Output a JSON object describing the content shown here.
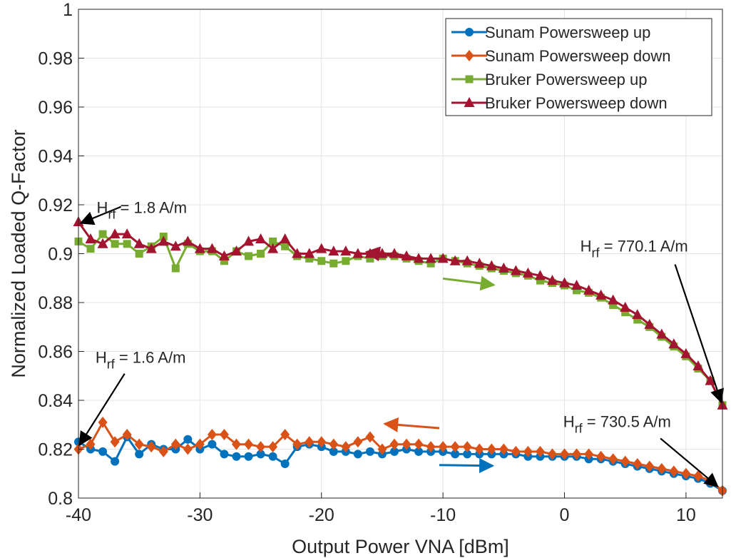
{
  "chart_data": {
    "type": "line",
    "xlabel": "Output Power VNA [dBm]",
    "ylabel": "Normalized Loaded Q-Factor",
    "xlim": [
      -40,
      13
    ],
    "ylim": [
      0.8,
      1.0
    ],
    "xticks": [
      "-40",
      "-30",
      "-20",
      "-10",
      "0",
      "10"
    ],
    "yticks": [
      "0.8",
      "0.82",
      "0.84",
      "0.86",
      "0.88",
      "0.9",
      "0.92",
      "0.94",
      "0.96",
      "0.98",
      "1"
    ],
    "grid": true,
    "legend_position": "top-right",
    "x": [
      -40,
      -39,
      -38,
      -37,
      -36,
      -35,
      -34,
      -33,
      -32,
      -31,
      -30,
      -29,
      -28,
      -27,
      -26,
      -25,
      -24,
      -23,
      -22,
      -21,
      -20,
      -19,
      -18,
      -17,
      -16,
      -15,
      -14,
      -13,
      -12,
      -11,
      -10,
      -9,
      -8,
      -7,
      -6,
      -5,
      -4,
      -3,
      -2,
      -1,
      0,
      1,
      2,
      3,
      4,
      5,
      6,
      7,
      8,
      9,
      10,
      11,
      12,
      13
    ],
    "series": [
      {
        "name": "Sunam Powersweep up",
        "color": "#0072BD",
        "marker": "circle",
        "values": [
          0.823,
          0.82,
          0.819,
          0.815,
          0.825,
          0.818,
          0.822,
          0.82,
          0.82,
          0.824,
          0.82,
          0.822,
          0.818,
          0.817,
          0.817,
          0.818,
          0.817,
          0.814,
          0.821,
          0.822,
          0.821,
          0.819,
          0.819,
          0.818,
          0.819,
          0.818,
          0.819,
          0.82,
          0.819,
          0.819,
          0.819,
          0.818,
          0.818,
          0.818,
          0.818,
          0.818,
          0.818,
          0.817,
          0.817,
          0.817,
          0.817,
          0.817,
          0.816,
          0.816,
          0.815,
          0.814,
          0.813,
          0.812,
          0.811,
          0.81,
          0.809,
          0.808,
          0.806,
          0.803
        ]
      },
      {
        "name": "Sunam Powersweep down",
        "color": "#D95319",
        "marker": "diamond",
        "values": [
          0.82,
          0.822,
          0.831,
          0.823,
          0.826,
          0.822,
          0.821,
          0.819,
          0.822,
          0.82,
          0.822,
          0.826,
          0.826,
          0.822,
          0.822,
          0.821,
          0.821,
          0.826,
          0.822,
          0.823,
          0.823,
          0.822,
          0.821,
          0.823,
          0.825,
          0.82,
          0.822,
          0.822,
          0.822,
          0.821,
          0.821,
          0.821,
          0.821,
          0.82,
          0.82,
          0.82,
          0.819,
          0.819,
          0.819,
          0.818,
          0.818,
          0.818,
          0.818,
          0.817,
          0.816,
          0.815,
          0.814,
          0.813,
          0.812,
          0.811,
          0.81,
          0.809,
          0.807,
          0.803
        ]
      },
      {
        "name": "Bruker Powersweep up",
        "color": "#77AC30",
        "marker": "square",
        "values": [
          0.905,
          0.902,
          0.908,
          0.904,
          0.904,
          0.9,
          0.903,
          0.907,
          0.894,
          0.904,
          0.901,
          0.901,
          0.897,
          0.901,
          0.899,
          0.9,
          0.905,
          0.903,
          0.899,
          0.898,
          0.897,
          0.896,
          0.897,
          0.899,
          0.898,
          0.899,
          0.899,
          0.898,
          0.897,
          0.896,
          0.898,
          0.897,
          0.896,
          0.895,
          0.894,
          0.893,
          0.892,
          0.891,
          0.889,
          0.888,
          0.887,
          0.885,
          0.884,
          0.882,
          0.879,
          0.876,
          0.873,
          0.87,
          0.866,
          0.862,
          0.858,
          0.853,
          0.848,
          0.838
        ]
      },
      {
        "name": "Bruker Powersweep down",
        "color": "#A2142F",
        "marker": "triangle",
        "values": [
          0.913,
          0.906,
          0.904,
          0.908,
          0.908,
          0.904,
          0.902,
          0.905,
          0.903,
          0.905,
          0.902,
          0.902,
          0.899,
          0.901,
          0.905,
          0.906,
          0.902,
          0.906,
          0.9,
          0.9,
          0.902,
          0.901,
          0.901,
          0.9,
          0.9,
          0.9,
          0.9,
          0.899,
          0.898,
          0.898,
          0.898,
          0.897,
          0.897,
          0.896,
          0.895,
          0.894,
          0.893,
          0.892,
          0.891,
          0.889,
          0.888,
          0.887,
          0.885,
          0.883,
          0.881,
          0.878,
          0.875,
          0.871,
          0.867,
          0.863,
          0.859,
          0.854,
          0.848,
          0.838
        ]
      }
    ],
    "annotations": [
      {
        "label": "H",
        "sub": "rf",
        "rest": " = 1.8 A/m",
        "x": -38.5,
        "y": 0.9166,
        "tx": -39.8,
        "ty": 0.9125,
        "ax": -36.5,
        "ay": 0.9192
      },
      {
        "label": "H",
        "sub": "rf",
        "rest": " = 770.1 A/m",
        "x": 1.3,
        "y": 0.9009,
        "tx": 12.9,
        "ty": 0.8393,
        "ax": 9.1,
        "ay": 0.8956
      },
      {
        "label": "H",
        "sub": "rf",
        "rest": " = 1.6 A/m",
        "x": -38.6,
        "y": 0.8554,
        "tx": -39.9,
        "ty": 0.8218,
        "ax": -36.2,
        "ay": 0.8509
      },
      {
        "label": "H",
        "sub": "rf",
        "rest": " = 730.5 A/m",
        "x": -0.1,
        "y": 0.8291,
        "tx": 12.6,
        "ty": 0.8048,
        "ax": 7.9,
        "ay": 0.8244
      }
    ],
    "direction_arrows": [
      {
        "color": "#A2142F",
        "from": [
          -12,
          0.8976
        ],
        "to": [
          -16.3,
          0.9007
        ]
      },
      {
        "color": "#77AC30",
        "from": [
          -10,
          0.8898
        ],
        "to": [
          -5.8,
          0.8872
        ]
      },
      {
        "color": "#D95319",
        "from": [
          -10.3,
          0.8286
        ],
        "to": [
          -14.8,
          0.8304
        ]
      },
      {
        "color": "#0072BD",
        "from": [
          -10.3,
          0.8135
        ],
        "to": [
          -5.9,
          0.8132
        ]
      }
    ]
  }
}
